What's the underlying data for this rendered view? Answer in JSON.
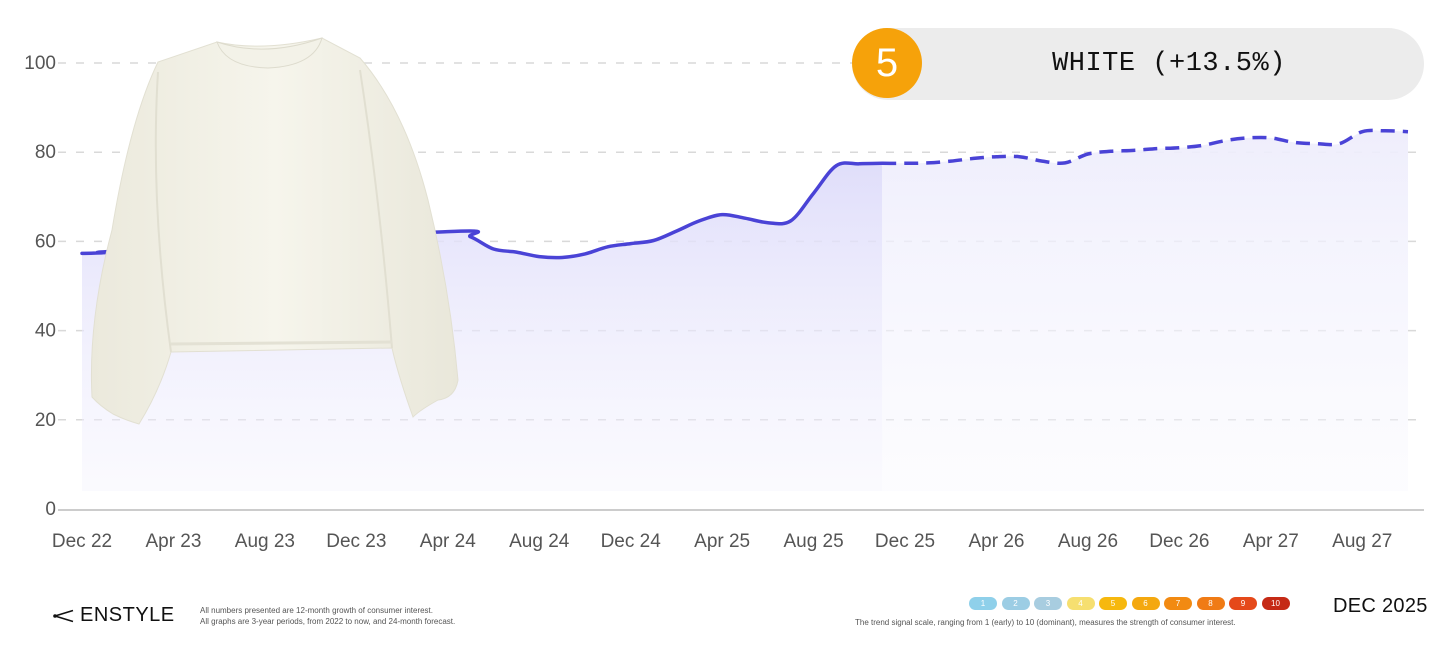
{
  "chart_data": {
    "type": "area",
    "title": "",
    "xlabel": "",
    "ylabel": "",
    "ylim": [
      0,
      100
    ],
    "yticks": [
      "0",
      "20",
      "40",
      "60",
      "80",
      "100"
    ],
    "grid": true,
    "categories": [
      "Dec 22",
      "Apr 23",
      "Aug 23",
      "Dec 23",
      "Apr 24",
      "Aug 24",
      "Dec 24",
      "Apr 25",
      "Aug 25",
      "Dec 25",
      "Apr 26",
      "Aug 26",
      "Dec 26",
      "Apr 27",
      "Aug 27"
    ],
    "series": [
      {
        "style": "solid",
        "x": [
          "Dec 22",
          "Jan 23",
          "Feb 23",
          "Apr 24",
          "May 24",
          "Jun 24",
          "Jul 24",
          "Aug 24",
          "Sep 24",
          "Oct 24",
          "Nov 24",
          "Dec 24",
          "Jan 25",
          "Feb 25",
          "Mar 25",
          "Apr 25",
          "May 25",
          "Jun 25",
          "Jul 25",
          "Aug 25",
          "Sep 25",
          "Oct 25",
          "Nov 25"
        ],
        "values": [
          57.3,
          57.5,
          58.0,
          62.2,
          61.0,
          58.3,
          57.6,
          56.6,
          56.4,
          57.2,
          58.8,
          59.5,
          60.2,
          62.3,
          64.6,
          66.0,
          65.2,
          64.2,
          64.6,
          70.8,
          77.0,
          77.4,
          77.5
        ]
      },
      {
        "style": "dashed",
        "x": [
          "Nov 25",
          "Dec 25",
          "Jan 26",
          "Feb 26",
          "Mar 26",
          "Apr 26",
          "May 26",
          "Jun 26",
          "Jul 26",
          "Aug 26",
          "Sep 26",
          "Oct 26",
          "Nov 26",
          "Dec 26",
          "Jan 27",
          "Feb 27",
          "Mar 27",
          "Apr 27",
          "May 27",
          "Jun 27",
          "Jul 27",
          "Aug 27",
          "Sep 27",
          "Oct 27"
        ],
        "values": [
          77.5,
          77.5,
          77.6,
          78.0,
          78.6,
          79.0,
          79.0,
          78.0,
          77.6,
          79.6,
          80.2,
          80.4,
          80.8,
          81.0,
          81.5,
          82.6,
          83.2,
          83.2,
          82.2,
          81.9,
          81.9,
          84.6,
          84.8,
          84.6
        ]
      }
    ],
    "colors": {
      "line": "#4a43d6",
      "area": "#e6e4fb",
      "grid": "#d9d9d9",
      "axis": "#cccccc"
    }
  },
  "badge": {
    "rank": "5",
    "label": "WHITE (+13.5%)",
    "circle_color": "#f6a20a"
  },
  "image": {
    "subject": "white knit sweater",
    "icon": "sweater-image"
  },
  "footer": {
    "brand": "ENSTYLE",
    "brand_icon": "scissors-icon",
    "note1": "All numbers presented are 12-month growth of consumer interest.",
    "note2": "All graphs are 3-year periods, from 2022 to now, and 24-month forecast.",
    "scale": [
      {
        "label": "1",
        "color": "#8fd0ea"
      },
      {
        "label": "2",
        "color": "#9ccde4"
      },
      {
        "label": "3",
        "color": "#a8cde0"
      },
      {
        "label": "4",
        "color": "#f6df70"
      },
      {
        "label": "5",
        "color": "#f6b80e"
      },
      {
        "label": "6",
        "color": "#f4a80f"
      },
      {
        "label": "7",
        "color": "#f28a12"
      },
      {
        "label": "8",
        "color": "#f07b15"
      },
      {
        "label": "9",
        "color": "#e5491a"
      },
      {
        "label": "10",
        "color": "#c52a16"
      }
    ],
    "scale_caption": "The trend signal scale, ranging from 1 (early) to 10 (dominant), measures the strength of consumer interest.",
    "date": "DEC 2025"
  }
}
